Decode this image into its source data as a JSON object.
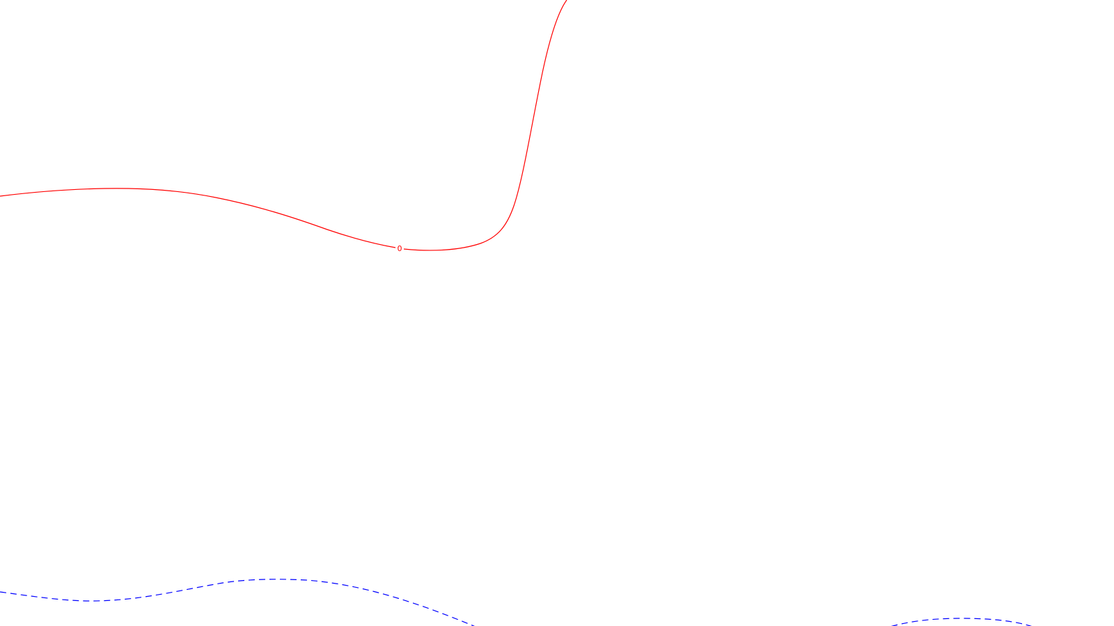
{
  "contours": [
    {
      "name": "contour-zero",
      "label": "0",
      "color": "#ff0000",
      "style": "solid"
    },
    {
      "name": "contour-negative-left",
      "label": "",
      "color": "#0000ff",
      "style": "dashed"
    },
    {
      "name": "contour-negative-right",
      "label": "",
      "color": "#0000ff",
      "style": "dashed"
    }
  ]
}
